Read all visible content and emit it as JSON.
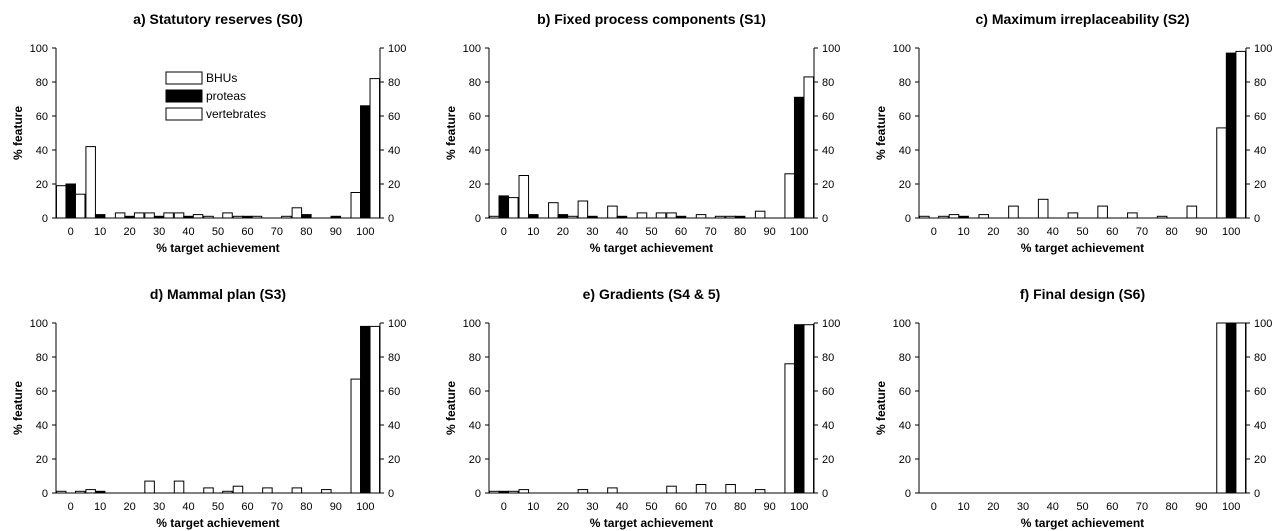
{
  "chart_data": [
    {
      "type": "bar",
      "title": "a) Statutory reserves (S0)",
      "xlabel": "% target achievement",
      "ylabel": "% feature",
      "categories": [
        "0",
        "10",
        "20",
        "30",
        "40",
        "50",
        "60",
        "70",
        "80",
        "90",
        "100"
      ],
      "ylim": [
        0,
        100
      ],
      "yticks": [
        "0",
        "20",
        "40",
        "60",
        "80",
        "100"
      ],
      "legend": "top-left",
      "series": [
        {
          "name": "BHUs",
          "values": [
            19,
            42,
            3,
            3,
            3,
            1,
            1,
            0,
            6,
            0,
            15
          ],
          "color": "#ffffff"
        },
        {
          "name": "proteas",
          "values": [
            20,
            2,
            1,
            1,
            1,
            0,
            1,
            0,
            2,
            1,
            66
          ],
          "color": "#000000"
        },
        {
          "name": "vertebrates",
          "values": [
            14,
            0,
            3,
            3,
            2,
            3,
            1,
            1,
            0,
            0,
            82
          ],
          "color": "#ffffff"
        }
      ]
    },
    {
      "type": "bar",
      "title": "b) Fixed process components (S1)",
      "xlabel": "% target achievement",
      "ylabel": "% feature",
      "categories": [
        "0",
        "10",
        "20",
        "30",
        "40",
        "50",
        "60",
        "70",
        "80",
        "90",
        "100"
      ],
      "ylim": [
        0,
        100
      ],
      "yticks": [
        "0",
        "20",
        "40",
        "60",
        "80",
        "100"
      ],
      "series": [
        {
          "name": "BHUs",
          "values": [
            1,
            25,
            9,
            10,
            7,
            3,
            3,
            2,
            1,
            4,
            26
          ],
          "color": "#ffffff"
        },
        {
          "name": "proteas",
          "values": [
            13,
            2,
            2,
            1,
            1,
            0,
            1,
            0,
            1,
            0,
            71
          ],
          "color": "#000000"
        },
        {
          "name": "vertebrates",
          "values": [
            12,
            0,
            1,
            0,
            0,
            3,
            0,
            1,
            0,
            0,
            83
          ],
          "color": "#ffffff"
        }
      ]
    },
    {
      "type": "bar",
      "title": "c) Maximum irreplaceability (S2)",
      "xlabel": "% target achievement",
      "ylabel": "% feature",
      "categories": [
        "0",
        "10",
        "20",
        "30",
        "40",
        "50",
        "60",
        "70",
        "80",
        "90",
        "100"
      ],
      "ylim": [
        0,
        100
      ],
      "yticks": [
        "0",
        "20",
        "40",
        "60",
        "80",
        "100"
      ],
      "series": [
        {
          "name": "BHUs",
          "values": [
            1,
            2,
            2,
            7,
            11,
            3,
            7,
            3,
            1,
            7,
            53
          ],
          "color": "#ffffff"
        },
        {
          "name": "proteas",
          "values": [
            0,
            1,
            0,
            0,
            0,
            0,
            0,
            0,
            0,
            0,
            97
          ],
          "color": "#000000"
        },
        {
          "name": "vertebrates",
          "values": [
            1,
            0,
            0,
            0,
            0,
            0,
            0,
            0,
            0,
            0,
            98
          ],
          "color": "#ffffff"
        }
      ]
    },
    {
      "type": "bar",
      "title": "d) Mammal plan (S3)",
      "xlabel": "% target achievement",
      "ylabel": "% feature",
      "categories": [
        "0",
        "10",
        "20",
        "30",
        "40",
        "50",
        "60",
        "70",
        "80",
        "90",
        "100"
      ],
      "ylim": [
        0,
        100
      ],
      "yticks": [
        "0",
        "20",
        "40",
        "60",
        "80",
        "100"
      ],
      "series": [
        {
          "name": "BHUs",
          "values": [
            1,
            2,
            0,
            7,
            7,
            3,
            4,
            3,
            3,
            2,
            67
          ],
          "color": "#ffffff"
        },
        {
          "name": "proteas",
          "values": [
            0,
            1,
            0,
            0,
            0,
            0,
            0,
            0,
            0,
            0,
            98
          ],
          "color": "#000000"
        },
        {
          "name": "vertebrates",
          "values": [
            1,
            0,
            0,
            0,
            0,
            1,
            0,
            0,
            0,
            0,
            98
          ],
          "color": "#ffffff"
        }
      ]
    },
    {
      "type": "bar",
      "title": "e) Gradients (S4 & 5)",
      "xlabel": "% target achievement",
      "ylabel": "% feature",
      "categories": [
        "0",
        "10",
        "20",
        "30",
        "40",
        "50",
        "60",
        "70",
        "80",
        "90",
        "100"
      ],
      "ylim": [
        0,
        100
      ],
      "yticks": [
        "0",
        "20",
        "40",
        "60",
        "80",
        "100"
      ],
      "series": [
        {
          "name": "BHUs",
          "values": [
            1,
            2,
            0,
            2,
            3,
            0,
            4,
            5,
            5,
            2,
            76
          ],
          "color": "#ffffff"
        },
        {
          "name": "proteas",
          "values": [
            1,
            0,
            0,
            0,
            0,
            0,
            0,
            0,
            0,
            0,
            99
          ],
          "color": "#000000"
        },
        {
          "name": "vertebrates",
          "values": [
            1,
            0,
            0,
            0,
            0,
            0,
            0,
            0,
            0,
            0,
            99
          ],
          "color": "#ffffff"
        }
      ]
    },
    {
      "type": "bar",
      "title": "f) Final design (S6)",
      "xlabel": "% target achievement",
      "ylabel": "% feature",
      "categories": [
        "0",
        "10",
        "20",
        "30",
        "40",
        "50",
        "60",
        "70",
        "80",
        "90",
        "100"
      ],
      "ylim": [
        0,
        100
      ],
      "yticks": [
        "0",
        "20",
        "40",
        "60",
        "80",
        "100"
      ],
      "series": [
        {
          "name": "BHUs",
          "values": [
            0,
            0,
            0,
            0,
            0,
            0,
            0,
            0,
            0,
            0,
            100
          ],
          "color": "#ffffff"
        },
        {
          "name": "proteas",
          "values": [
            0,
            0,
            0,
            0,
            0,
            0,
            0,
            0,
            0,
            0,
            100
          ],
          "color": "#000000"
        },
        {
          "name": "vertebrates",
          "values": [
            0,
            0,
            0,
            0,
            0,
            0,
            0,
            0,
            0,
            0,
            100
          ],
          "color": "#ffffff"
        }
      ]
    }
  ]
}
